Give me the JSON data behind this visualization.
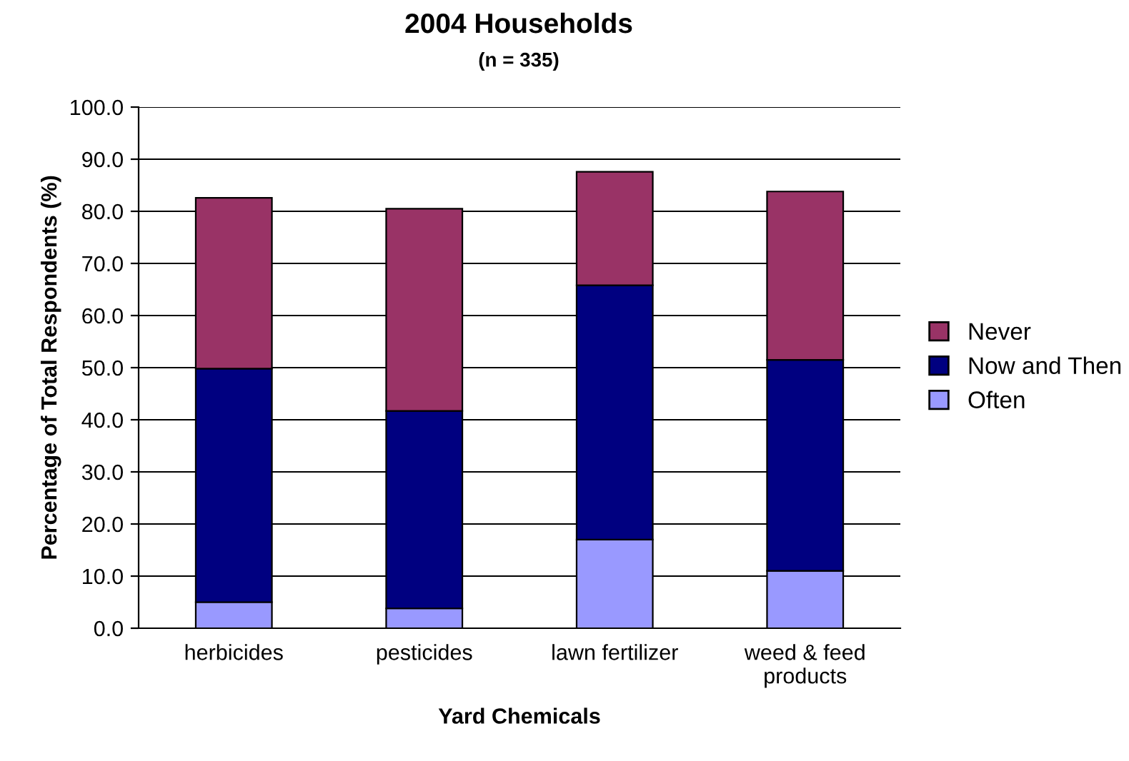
{
  "chart_data": {
    "type": "bar",
    "stacked": true,
    "title": "2004 Households",
    "subtitle": "(n = 335)",
    "xlabel": "Yard Chemicals",
    "ylabel": "Percentage of Total Respondents (%)",
    "categories": [
      "herbicides",
      "pesticides",
      "lawn fertilizer",
      "weed & feed products"
    ],
    "series": [
      {
        "name": "Often",
        "color": "#9999ff",
        "values": [
          5.0,
          3.8,
          17.0,
          11.0
        ]
      },
      {
        "name": "Now and Then",
        "color": "#000080",
        "values": [
          44.8,
          37.9,
          48.8,
          40.5
        ]
      },
      {
        "name": "Never",
        "color": "#993366",
        "values": [
          32.8,
          38.8,
          21.8,
          32.3
        ]
      }
    ],
    "ylim": [
      0,
      100
    ],
    "yticks": [
      {
        "value": 0,
        "label": "0.0"
      },
      {
        "value": 10,
        "label": "10.0"
      },
      {
        "value": 20,
        "label": "20.0"
      },
      {
        "value": 30,
        "label": "30.0"
      },
      {
        "value": 40,
        "label": "40.0"
      },
      {
        "value": 50,
        "label": "50.0"
      },
      {
        "value": 60,
        "label": "60.0"
      },
      {
        "value": 70,
        "label": "70.0"
      },
      {
        "value": 80,
        "label": "80.0"
      },
      {
        "value": 90,
        "label": "90.0"
      },
      {
        "value": 100,
        "label": "100.0"
      }
    ],
    "grid": "y",
    "legend": "right"
  }
}
